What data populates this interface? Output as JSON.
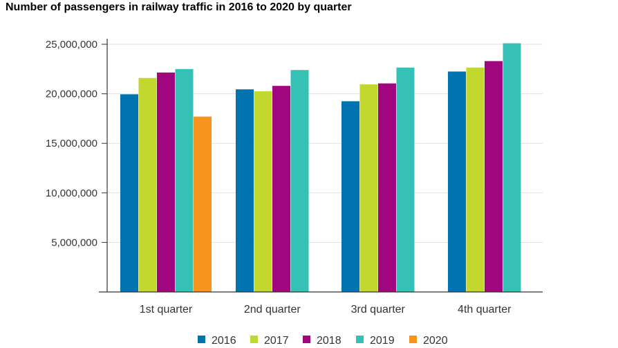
{
  "chart_data": {
    "type": "bar",
    "title": "Number of passengers in railway traffic in 2016 to 2020 by quarter",
    "categories": [
      "1st quarter",
      "2nd quarter",
      "3rd quarter",
      "4th quarter"
    ],
    "series": [
      {
        "name": "2016",
        "color": "#0073b0",
        "values": [
          19950000,
          20450000,
          19250000,
          22250000
        ]
      },
      {
        "name": "2017",
        "color": "#c2d82e",
        "values": [
          21600000,
          20250000,
          20950000,
          22650000
        ]
      },
      {
        "name": "2018",
        "color": "#a0077e",
        "values": [
          22150000,
          20800000,
          21050000,
          23300000
        ]
      },
      {
        "name": "2019",
        "color": "#35c1b6",
        "values": [
          22500000,
          22400000,
          22650000,
          25100000
        ]
      },
      {
        "name": "2020",
        "color": "#f7941d",
        "values": [
          17700000,
          null,
          null,
          null
        ]
      }
    ],
    "yticks": [
      "5,000,000",
      "10,000,000",
      "15,000,000",
      "20,000,000",
      "25,000,000"
    ],
    "ylim": [
      0,
      25000000
    ],
    "xlabel": "",
    "ylabel": "",
    "grid": true,
    "legend_position": "bottom"
  }
}
